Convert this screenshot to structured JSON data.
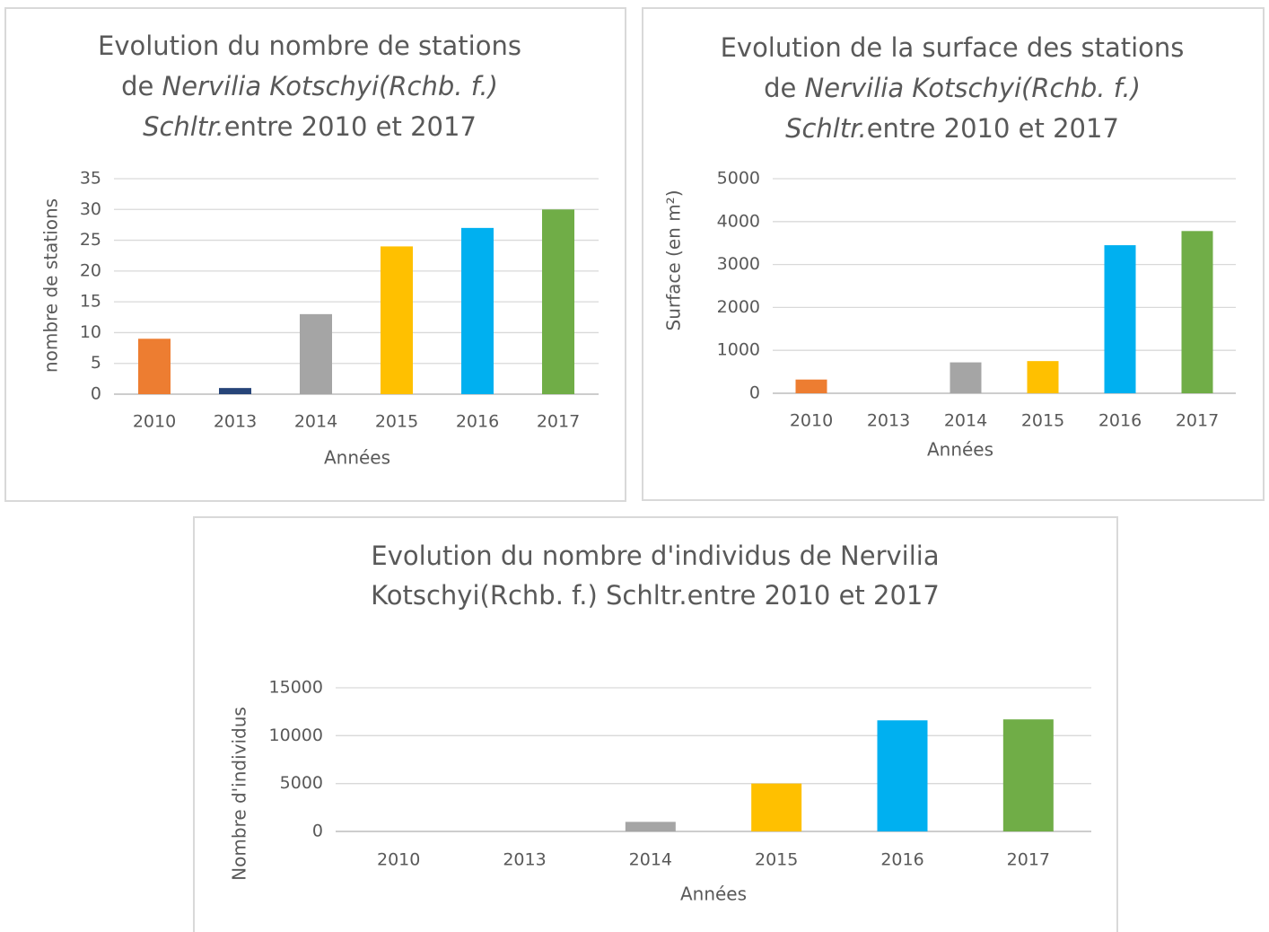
{
  "chart_data": [
    {
      "type": "bar",
      "title": [
        [
          {
            "text": "Evolution du nombre de stations"
          }
        ],
        [
          {
            "text": "de "
          },
          {
            "text": "Nervilia Kotschyi(Rchb. f.)",
            "italic": true
          }
        ],
        [
          {
            "text": "Schltr.",
            "italic": true
          },
          {
            "text": "entre 2010 et 2017"
          }
        ]
      ],
      "y_label": "nombre de stations",
      "x_label": "Années",
      "categories": [
        "2010",
        "2013",
        "2014",
        "2015",
        "2016",
        "2017"
      ],
      "values": [
        9,
        1,
        13,
        24,
        27,
        30
      ],
      "colors": [
        "#ed7d31",
        "#264478",
        "#a5a5a5",
        "#ffc000",
        "#00b0f0",
        "#70ad47"
      ],
      "ylim": [
        0,
        35
      ],
      "yticks": [
        0,
        5,
        10,
        15,
        20,
        25,
        30,
        35
      ],
      "grid": true
    },
    {
      "type": "bar",
      "title": [
        [
          {
            "text": "Evolution de la surface des stations"
          }
        ],
        [
          {
            "text": "de "
          },
          {
            "text": "Nervilia Kotschyi(Rchb. f.)",
            "italic": true
          }
        ],
        [
          {
            "text": "Schltr.",
            "italic": true
          },
          {
            "text": "entre 2010 et 2017"
          }
        ]
      ],
      "y_label": "Surface (en m²)",
      "x_label": "Années",
      "categories": [
        "2010",
        "2013",
        "2014",
        "2015",
        "2016",
        "2017"
      ],
      "values": [
        320,
        0,
        720,
        750,
        3450,
        3780
      ],
      "colors": [
        "#ed7d31",
        "#264478",
        "#a5a5a5",
        "#ffc000",
        "#00b0f0",
        "#70ad47"
      ],
      "ylim": [
        0,
        5000
      ],
      "yticks": [
        0,
        1000,
        2000,
        3000,
        4000,
        5000
      ],
      "grid": true
    },
    {
      "type": "bar",
      "title": [
        [
          {
            "text": "Evolution du nombre d'individus de Nervilia"
          }
        ],
        [
          {
            "text": "Kotschyi(Rchb. f.) Schltr.entre 2010 et 2017"
          }
        ]
      ],
      "y_label": "Nombre d'individus",
      "x_label": "Années",
      "categories": [
        "2010",
        "2013",
        "2014",
        "2015",
        "2016",
        "2017"
      ],
      "values": [
        0,
        0,
        1000,
        5000,
        11600,
        11700
      ],
      "colors": [
        "#ed7d31",
        "#264478",
        "#a5a5a5",
        "#ffc000",
        "#00b0f0",
        "#70ad47"
      ],
      "ylim": [
        0,
        15000
      ],
      "yticks": [
        0,
        5000,
        10000,
        15000
      ],
      "grid": true
    }
  ]
}
